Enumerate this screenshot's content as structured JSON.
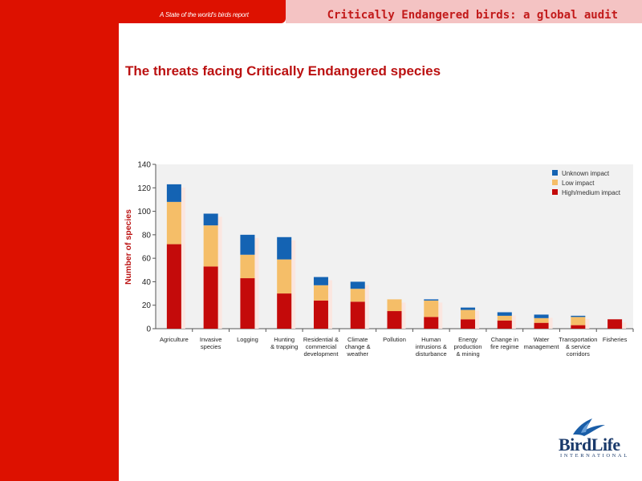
{
  "header": {
    "report_label": "A State of the world's birds report",
    "title": "Critically Endangered birds: a global audit"
  },
  "slide": {
    "title": "The threats facing Critically Endangered species"
  },
  "colors": {
    "brand_red": "#dd1100",
    "header_pink": "#f4c3c3",
    "high_medium": "#c40a0a",
    "low": "#f5be68",
    "unknown": "#1463b3"
  },
  "logo": {
    "name": "BirdLife",
    "subtitle": "INTERNATIONAL",
    "icon": "bird-logo-icon"
  },
  "chart_data": {
    "type": "bar",
    "stacked": true,
    "ylabel": "Number of species",
    "xlabel": "",
    "ylim": [
      0,
      140
    ],
    "yticks": [
      0,
      20,
      40,
      60,
      80,
      100,
      120,
      140
    ],
    "grid": false,
    "legend_position": "top-right",
    "categories": [
      [
        "Agriculture"
      ],
      [
        "Invasive",
        "species"
      ],
      [
        "Logging"
      ],
      [
        "Hunting",
        "& trapping"
      ],
      [
        "Residential &",
        "commercial",
        "development"
      ],
      [
        "Climate",
        "change &",
        "weather"
      ],
      [
        "Pollution"
      ],
      [
        "Human",
        "intrusions &",
        "disturbance"
      ],
      [
        "Energy",
        "production",
        "& mining"
      ],
      [
        "Change in",
        "fire regime"
      ],
      [
        "Water",
        "management"
      ],
      [
        "Transportation",
        "& service",
        "corridors"
      ],
      [
        "Fisheries"
      ]
    ],
    "series": [
      {
        "name": "High/medium impact",
        "color": "#c40a0a",
        "values": [
          72,
          53,
          43,
          30,
          24,
          23,
          15,
          10,
          8,
          7,
          5,
          3,
          8
        ]
      },
      {
        "name": "Low impact",
        "color": "#f5be68",
        "values": [
          36,
          35,
          20,
          29,
          13,
          11,
          10,
          14,
          8,
          4,
          4,
          7,
          0
        ]
      },
      {
        "name": "Unknown impact",
        "color": "#1463b3",
        "values": [
          15,
          10,
          17,
          19,
          7,
          6,
          0,
          1,
          2,
          3,
          3,
          1,
          0
        ]
      }
    ]
  }
}
